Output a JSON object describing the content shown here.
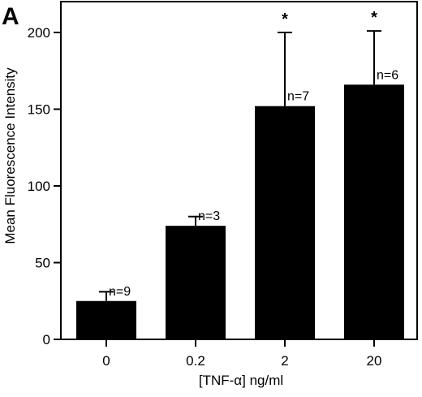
{
  "panel_label": "A",
  "chart_data": {
    "type": "bar",
    "categories": [
      "0",
      "0.2",
      "2",
      "20"
    ],
    "values": [
      25,
      74,
      152,
      166
    ],
    "error_upper": [
      31,
      80,
      200,
      201
    ],
    "n_labels": [
      "n=9",
      "n=3",
      "n=7",
      "n=6"
    ],
    "significance": [
      "",
      "",
      "*",
      "*"
    ],
    "xlabel": "[TNF-α] ng/ml",
    "ylabel": "Mean Fluorescence Intensity",
    "ylim": [
      0,
      200
    ],
    "yticks": [
      0,
      50,
      100,
      150,
      200
    ],
    "bar_color": "#000000",
    "grid": false,
    "legend": "none"
  }
}
